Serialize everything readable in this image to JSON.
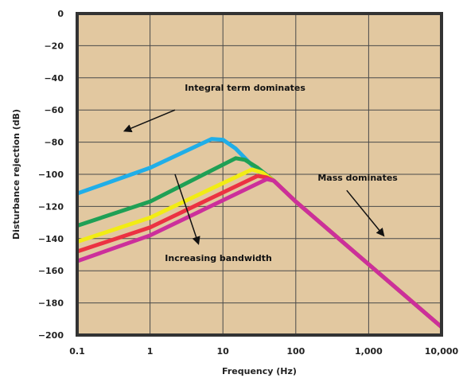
{
  "chart_data": {
    "type": "line",
    "title": "",
    "xlabel": "Frequency (Hz)",
    "ylabel": "Disturbance rejection (dB)",
    "x_scale": "log",
    "xlim": [
      0.1,
      10000
    ],
    "ylim": [
      -200,
      0
    ],
    "x_ticks": [
      0.1,
      1,
      10,
      100,
      1000,
      10000
    ],
    "x_tick_labels": [
      "0.1",
      "1",
      "10",
      "100",
      "1,000",
      "10,000"
    ],
    "y_ticks": [
      0,
      -20,
      -40,
      -60,
      -80,
      -100,
      -120,
      -140,
      -160,
      -180,
      -200
    ],
    "y_tick_labels": [
      "0",
      "−20",
      "−40",
      "−60",
      "−80",
      "−100",
      "−120",
      "−140",
      "−160",
      "−180",
      "−200"
    ],
    "grid": true,
    "colors": {
      "plot_background": "#e2c8a0",
      "grid": "#4a4a4a",
      "frame": "#333333"
    },
    "series": [
      {
        "color": "#20aee8",
        "x": [
          0.1,
          1,
          7,
          10,
          15,
          30,
          50,
          100,
          1000,
          10000
        ],
        "y": [
          -112,
          -96,
          -78,
          -78.5,
          -84,
          -98,
          -104,
          -117,
          -156,
          -195
        ]
      },
      {
        "color": "#1fa055",
        "x": [
          0.1,
          1,
          15,
          20,
          30,
          50,
          100,
          1000,
          10000
        ],
        "y": [
          -132,
          -117,
          -90,
          -91,
          -96,
          -104,
          -117,
          -156,
          -195
        ]
      },
      {
        "color": "#f2ec14",
        "x": [
          0.1,
          1,
          25,
          35,
          50,
          100,
          1000,
          10000
        ],
        "y": [
          -142,
          -127,
          -97,
          -99,
          -104,
          -117,
          -156,
          -195
        ]
      },
      {
        "color": "#ec3242",
        "x": [
          0.1,
          1,
          30,
          40,
          50,
          100,
          1000,
          10000
        ],
        "y": [
          -148,
          -133,
          -101,
          -102,
          -104,
          -117,
          -156,
          -195
        ]
      },
      {
        "color": "#cc2f9b",
        "x": [
          0.1,
          1,
          40,
          50,
          100,
          1000,
          10000
        ],
        "y": [
          -154,
          -138,
          -103,
          -104,
          -117,
          -156,
          -195
        ]
      }
    ],
    "annotations": [
      {
        "text": "Integral term dominates",
        "x": 3,
        "y": -48,
        "arrow_from": [
          2.2,
          -60
        ],
        "arrow_to": [
          0.45,
          -73
        ]
      },
      {
        "text": "Mass dominates",
        "x": 200,
        "y": -104,
        "arrow_from": [
          500,
          -110
        ],
        "arrow_to": [
          1600,
          -138
        ]
      },
      {
        "text": "Increasing bandwidth",
        "x": 1.6,
        "y": -154,
        "arrow_from": [
          2.2,
          -100
        ],
        "arrow_to": [
          4.6,
          -143
        ]
      }
    ]
  }
}
